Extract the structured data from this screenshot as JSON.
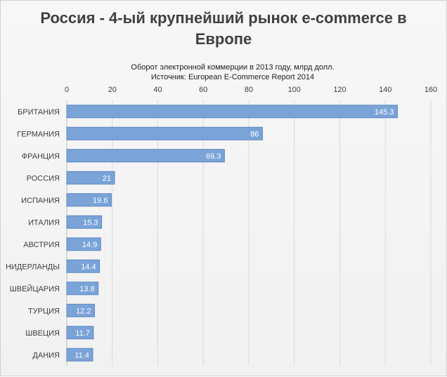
{
  "chart_data": {
    "type": "bar",
    "orientation": "horizontal",
    "title": "Россия - 4-ый крупнейший рынок e-commerce в Европе",
    "subtitle_lines": [
      "Оборот электронной коммерции в 2013 году, млрд долл.",
      "Источник: European  E-Commerce Report 2014"
    ],
    "categories": [
      "БРИТАНИЯ",
      "ГЕРМАНИЯ",
      "ФРАНЦИЯ",
      "РОССИЯ",
      "ИСПАНИЯ",
      "ИТАЛИЯ",
      "АВСТРИЯ",
      "НИДЕРЛАНДЫ",
      "ШВЕЙЦАРИЯ",
      "ТУРЦИЯ",
      "ШВЕЦИЯ",
      "ДАНИЯ"
    ],
    "values": [
      145.3,
      86,
      69.3,
      21,
      19.6,
      15.3,
      14.9,
      14.4,
      13.8,
      12.2,
      11.7,
      11.4
    ],
    "value_labels": [
      "145.3",
      "86",
      "69.3",
      "21",
      "19.6",
      "15.3",
      "14.9",
      "14.4",
      "13.8",
      "12.2",
      "11.7",
      "11.4"
    ],
    "xlim": [
      0,
      160
    ],
    "xticks": [
      "0",
      "20",
      "40",
      "60",
      "80",
      "100",
      "120",
      "140",
      "160"
    ],
    "axis_position": "top",
    "grid": true,
    "legend": "none",
    "colors": {
      "bar_fill": "#7aa3d8",
      "bar_stroke": "#5b87c2",
      "grid": "#d9d9d9",
      "background": "#f3f3f3",
      "text": "#404040"
    }
  }
}
